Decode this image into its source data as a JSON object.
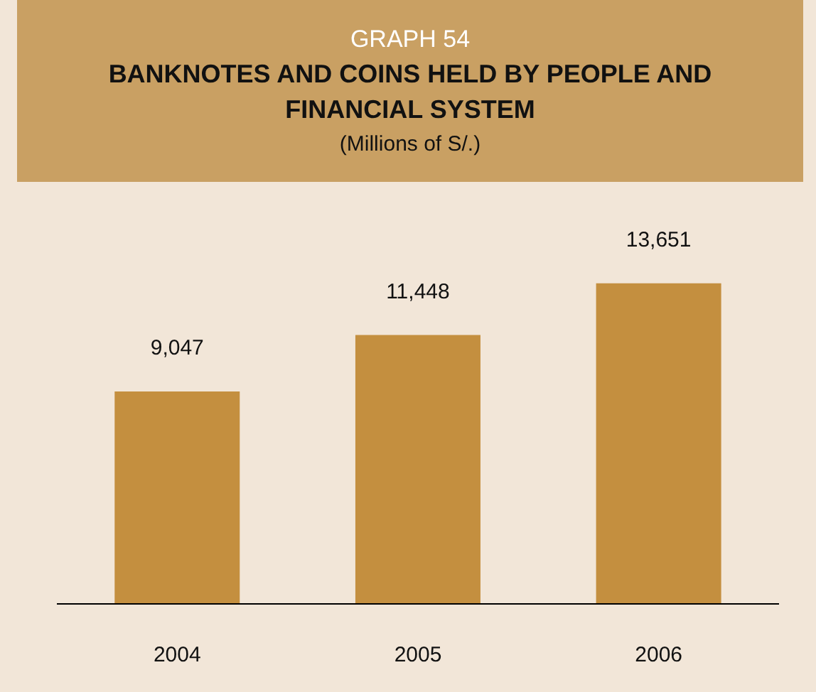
{
  "chart_data": {
    "type": "bar",
    "title": "BANKNOTES AND COINS HELD BY PEOPLE AND FINANCIAL SYSTEM",
    "subtitle": "(Millions of S/.)",
    "annotations": [
      "GRAPH 54"
    ],
    "categories": [
      "2004",
      "2005",
      "2006"
    ],
    "values": [
      9047,
      11448,
      13651
    ],
    "color": "#c48f3f",
    "data_labels": true,
    "value_labels": [
      "9,047",
      "11,448",
      "13,651"
    ],
    "grid": false
  }
}
